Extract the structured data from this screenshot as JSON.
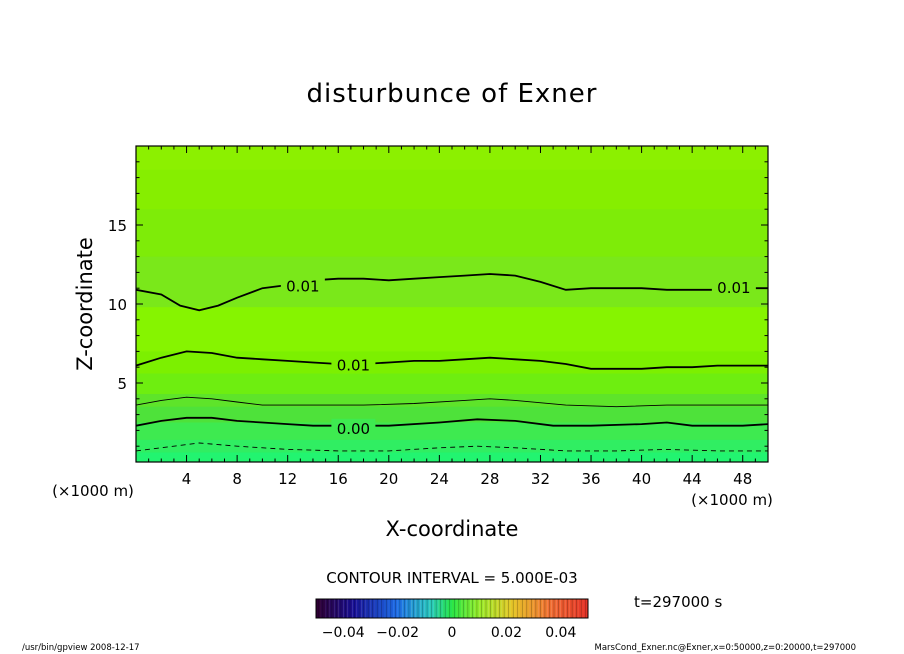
{
  "chart_data": {
    "type": "contour",
    "title": "disturbunce of Exner",
    "xlabel": "X-coordinate",
    "ylabel": "Z-coordinate",
    "x_unit": "(×1000 m)",
    "y_unit": "(×1000 m)",
    "xlim": [
      0,
      50
    ],
    "ylim": [
      0,
      20
    ],
    "x_ticks": [
      4,
      8,
      12,
      16,
      20,
      24,
      28,
      32,
      36,
      40,
      44,
      48
    ],
    "y_ticks": [
      5,
      10,
      15
    ],
    "contour_interval_text": "CONTOUR INTERVAL = 5.000E-03",
    "time_label": "t=297000 s",
    "colorbar": {
      "min": -0.05,
      "max": 0.05,
      "tick_labels": [
        "−0.04",
        "−0.02",
        "0",
        "0.02",
        "0.04"
      ],
      "tick_values": [
        -0.04,
        -0.02,
        0,
        0.02,
        0.04
      ]
    },
    "fill_bands": [
      {
        "z_top": 20.0,
        "color": "#8cf000"
      },
      {
        "z_top": 18.5,
        "color": "#86ee00"
      },
      {
        "z_top": 16.0,
        "color": "#7eec08"
      },
      {
        "z_top": 13.0,
        "color": "#7ae81a"
      },
      {
        "z_top": 9.8,
        "color": "#86f400"
      },
      {
        "z_top": 7.0,
        "color": "#7cf000"
      },
      {
        "z_top": 5.6,
        "color": "#6eee10"
      },
      {
        "z_top": 4.3,
        "color": "#5ee42a"
      },
      {
        "z_top": 3.5,
        "color": "#4ee23a"
      },
      {
        "z_top": 2.5,
        "color": "#3eea50"
      },
      {
        "z_top": 1.4,
        "color": "#30ee62"
      },
      {
        "z_top": 0.6,
        "color": "#22f470"
      }
    ],
    "contours": [
      {
        "level": 0.01,
        "label": "0.01",
        "style": "thick",
        "points": [
          [
            0,
            10.9
          ],
          [
            2,
            10.6
          ],
          [
            3.5,
            9.9
          ],
          [
            5,
            9.6
          ],
          [
            6.5,
            9.9
          ],
          [
            8,
            10.4
          ],
          [
            10,
            11.0
          ],
          [
            12,
            11.2
          ],
          [
            14,
            11.5
          ],
          [
            16,
            11.6
          ],
          [
            18,
            11.6
          ],
          [
            20,
            11.5
          ],
          [
            22,
            11.6
          ],
          [
            24,
            11.7
          ],
          [
            26,
            11.8
          ],
          [
            28,
            11.9
          ],
          [
            30,
            11.8
          ],
          [
            32,
            11.4
          ],
          [
            34,
            10.9
          ],
          [
            36,
            11.0
          ],
          [
            38,
            11.0
          ],
          [
            40,
            11.0
          ],
          [
            42,
            10.9
          ],
          [
            44,
            10.9
          ],
          [
            46,
            10.9
          ],
          [
            48,
            11.0
          ],
          [
            50,
            11.0
          ]
        ],
        "labels_at": [
          [
            13.2,
            11.1
          ],
          [
            47.3,
            11.0
          ]
        ]
      },
      {
        "level": 0.01,
        "label": "0.01",
        "style": "thick",
        "points": [
          [
            0,
            6.1
          ],
          [
            2,
            6.6
          ],
          [
            4,
            7.0
          ],
          [
            6,
            6.9
          ],
          [
            8,
            6.6
          ],
          [
            10,
            6.5
          ],
          [
            12,
            6.4
          ],
          [
            14,
            6.3
          ],
          [
            16,
            6.2
          ],
          [
            18,
            6.2
          ],
          [
            20,
            6.3
          ],
          [
            22,
            6.4
          ],
          [
            24,
            6.4
          ],
          [
            26,
            6.5
          ],
          [
            28,
            6.6
          ],
          [
            30,
            6.5
          ],
          [
            32,
            6.4
          ],
          [
            34,
            6.2
          ],
          [
            36,
            5.9
          ],
          [
            38,
            5.9
          ],
          [
            40,
            5.9
          ],
          [
            42,
            6.0
          ],
          [
            44,
            6.0
          ],
          [
            46,
            6.1
          ],
          [
            48,
            6.1
          ],
          [
            50,
            6.1
          ]
        ],
        "labels_at": [
          [
            17.2,
            6.1
          ]
        ]
      },
      {
        "level": 0.005,
        "label": "",
        "style": "thin",
        "points": [
          [
            0,
            3.6
          ],
          [
            2,
            3.9
          ],
          [
            4,
            4.1
          ],
          [
            6,
            4.0
          ],
          [
            8,
            3.8
          ],
          [
            10,
            3.6
          ],
          [
            14,
            3.6
          ],
          [
            18,
            3.6
          ],
          [
            22,
            3.7
          ],
          [
            26,
            3.9
          ],
          [
            28,
            4.0
          ],
          [
            30,
            3.9
          ],
          [
            34,
            3.6
          ],
          [
            38,
            3.5
          ],
          [
            42,
            3.6
          ],
          [
            46,
            3.6
          ],
          [
            50,
            3.6
          ]
        ],
        "labels_at": []
      },
      {
        "level": 0.0,
        "label": "0.00",
        "style": "thick",
        "points": [
          [
            0,
            2.3
          ],
          [
            2,
            2.6
          ],
          [
            4,
            2.8
          ],
          [
            6,
            2.8
          ],
          [
            8,
            2.6
          ],
          [
            10,
            2.5
          ],
          [
            12,
            2.4
          ],
          [
            14,
            2.3
          ],
          [
            16,
            2.3
          ],
          [
            20,
            2.3
          ],
          [
            24,
            2.5
          ],
          [
            27,
            2.7
          ],
          [
            30,
            2.6
          ],
          [
            33,
            2.3
          ],
          [
            36,
            2.3
          ],
          [
            40,
            2.4
          ],
          [
            42,
            2.5
          ],
          [
            44,
            2.3
          ],
          [
            48,
            2.3
          ],
          [
            50,
            2.4
          ]
        ],
        "labels_at": [
          [
            17.2,
            2.1
          ]
        ]
      },
      {
        "level": -0.005,
        "label": "",
        "style": "dashed",
        "points": [
          [
            0,
            0.7
          ],
          [
            3,
            1.0
          ],
          [
            5,
            1.2
          ],
          [
            8,
            1.0
          ],
          [
            12,
            0.8
          ],
          [
            16,
            0.7
          ],
          [
            20,
            0.7
          ],
          [
            24,
            0.9
          ],
          [
            27,
            1.0
          ],
          [
            30,
            0.9
          ],
          [
            34,
            0.7
          ],
          [
            38,
            0.7
          ],
          [
            42,
            0.8
          ],
          [
            46,
            0.7
          ],
          [
            50,
            0.7
          ]
        ],
        "labels_at": []
      }
    ]
  },
  "footer": {
    "left_text": "/usr/bin/gpview   2008-12-17",
    "right_text": "MarsCond_Exner.nc@Exner,x=0:50000,z=0:20000,t=297000"
  }
}
